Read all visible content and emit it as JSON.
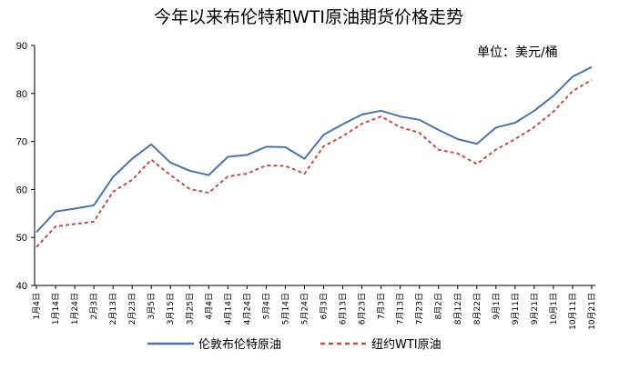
{
  "chart_data": {
    "type": "line",
    "title": "今年以来布伦特和WTI原油期货价格走势",
    "unit_label": "单位：美元/桶",
    "ylim": [
      40,
      90
    ],
    "y_ticks": [
      "40",
      "50",
      "60",
      "70",
      "80",
      "90"
    ],
    "grid": false,
    "legend_position": "bottom",
    "categories": [
      "1月4日",
      "1月14日",
      "1月24日",
      "2月3日",
      "2月13日",
      "2月23日",
      "3月5日",
      "3月15日",
      "3月25日",
      "4月4日",
      "4月14日",
      "4月24日",
      "5月4日",
      "5月14日",
      "5月24日",
      "6月3日",
      "6月13日",
      "6月23日",
      "7月3日",
      "7月13日",
      "7月23日",
      "8月2日",
      "8月12日",
      "8月22日",
      "9月1日",
      "9月11日",
      "9月21日",
      "10月1日",
      "10月11日",
      "10月21日"
    ],
    "series": [
      {
        "name": "伦敦布伦特原油",
        "color": "#4a74ad",
        "dash": "solid",
        "values": [
          51.1,
          55.4,
          56.0,
          56.7,
          62.6,
          66.4,
          69.4,
          65.6,
          63.9,
          63.0,
          66.8,
          67.2,
          68.9,
          68.8,
          66.4,
          71.4,
          73.6,
          75.6,
          76.4,
          75.2,
          74.5,
          72.4,
          70.5,
          69.5,
          72.9,
          73.9,
          76.4,
          79.5,
          83.5,
          85.5
        ]
      },
      {
        "name": "纽约WTI原油",
        "color": "#c0504d",
        "dash": "dashed",
        "values": [
          48.0,
          52.3,
          52.8,
          53.3,
          59.5,
          62.0,
          66.2,
          63.0,
          60.1,
          59.3,
          62.7,
          63.3,
          65.0,
          64.9,
          63.3,
          69.0,
          71.1,
          73.7,
          75.2,
          73.0,
          71.8,
          68.3,
          67.5,
          65.3,
          68.3,
          70.5,
          73.0,
          76.2,
          80.5,
          82.8
        ]
      }
    ]
  }
}
